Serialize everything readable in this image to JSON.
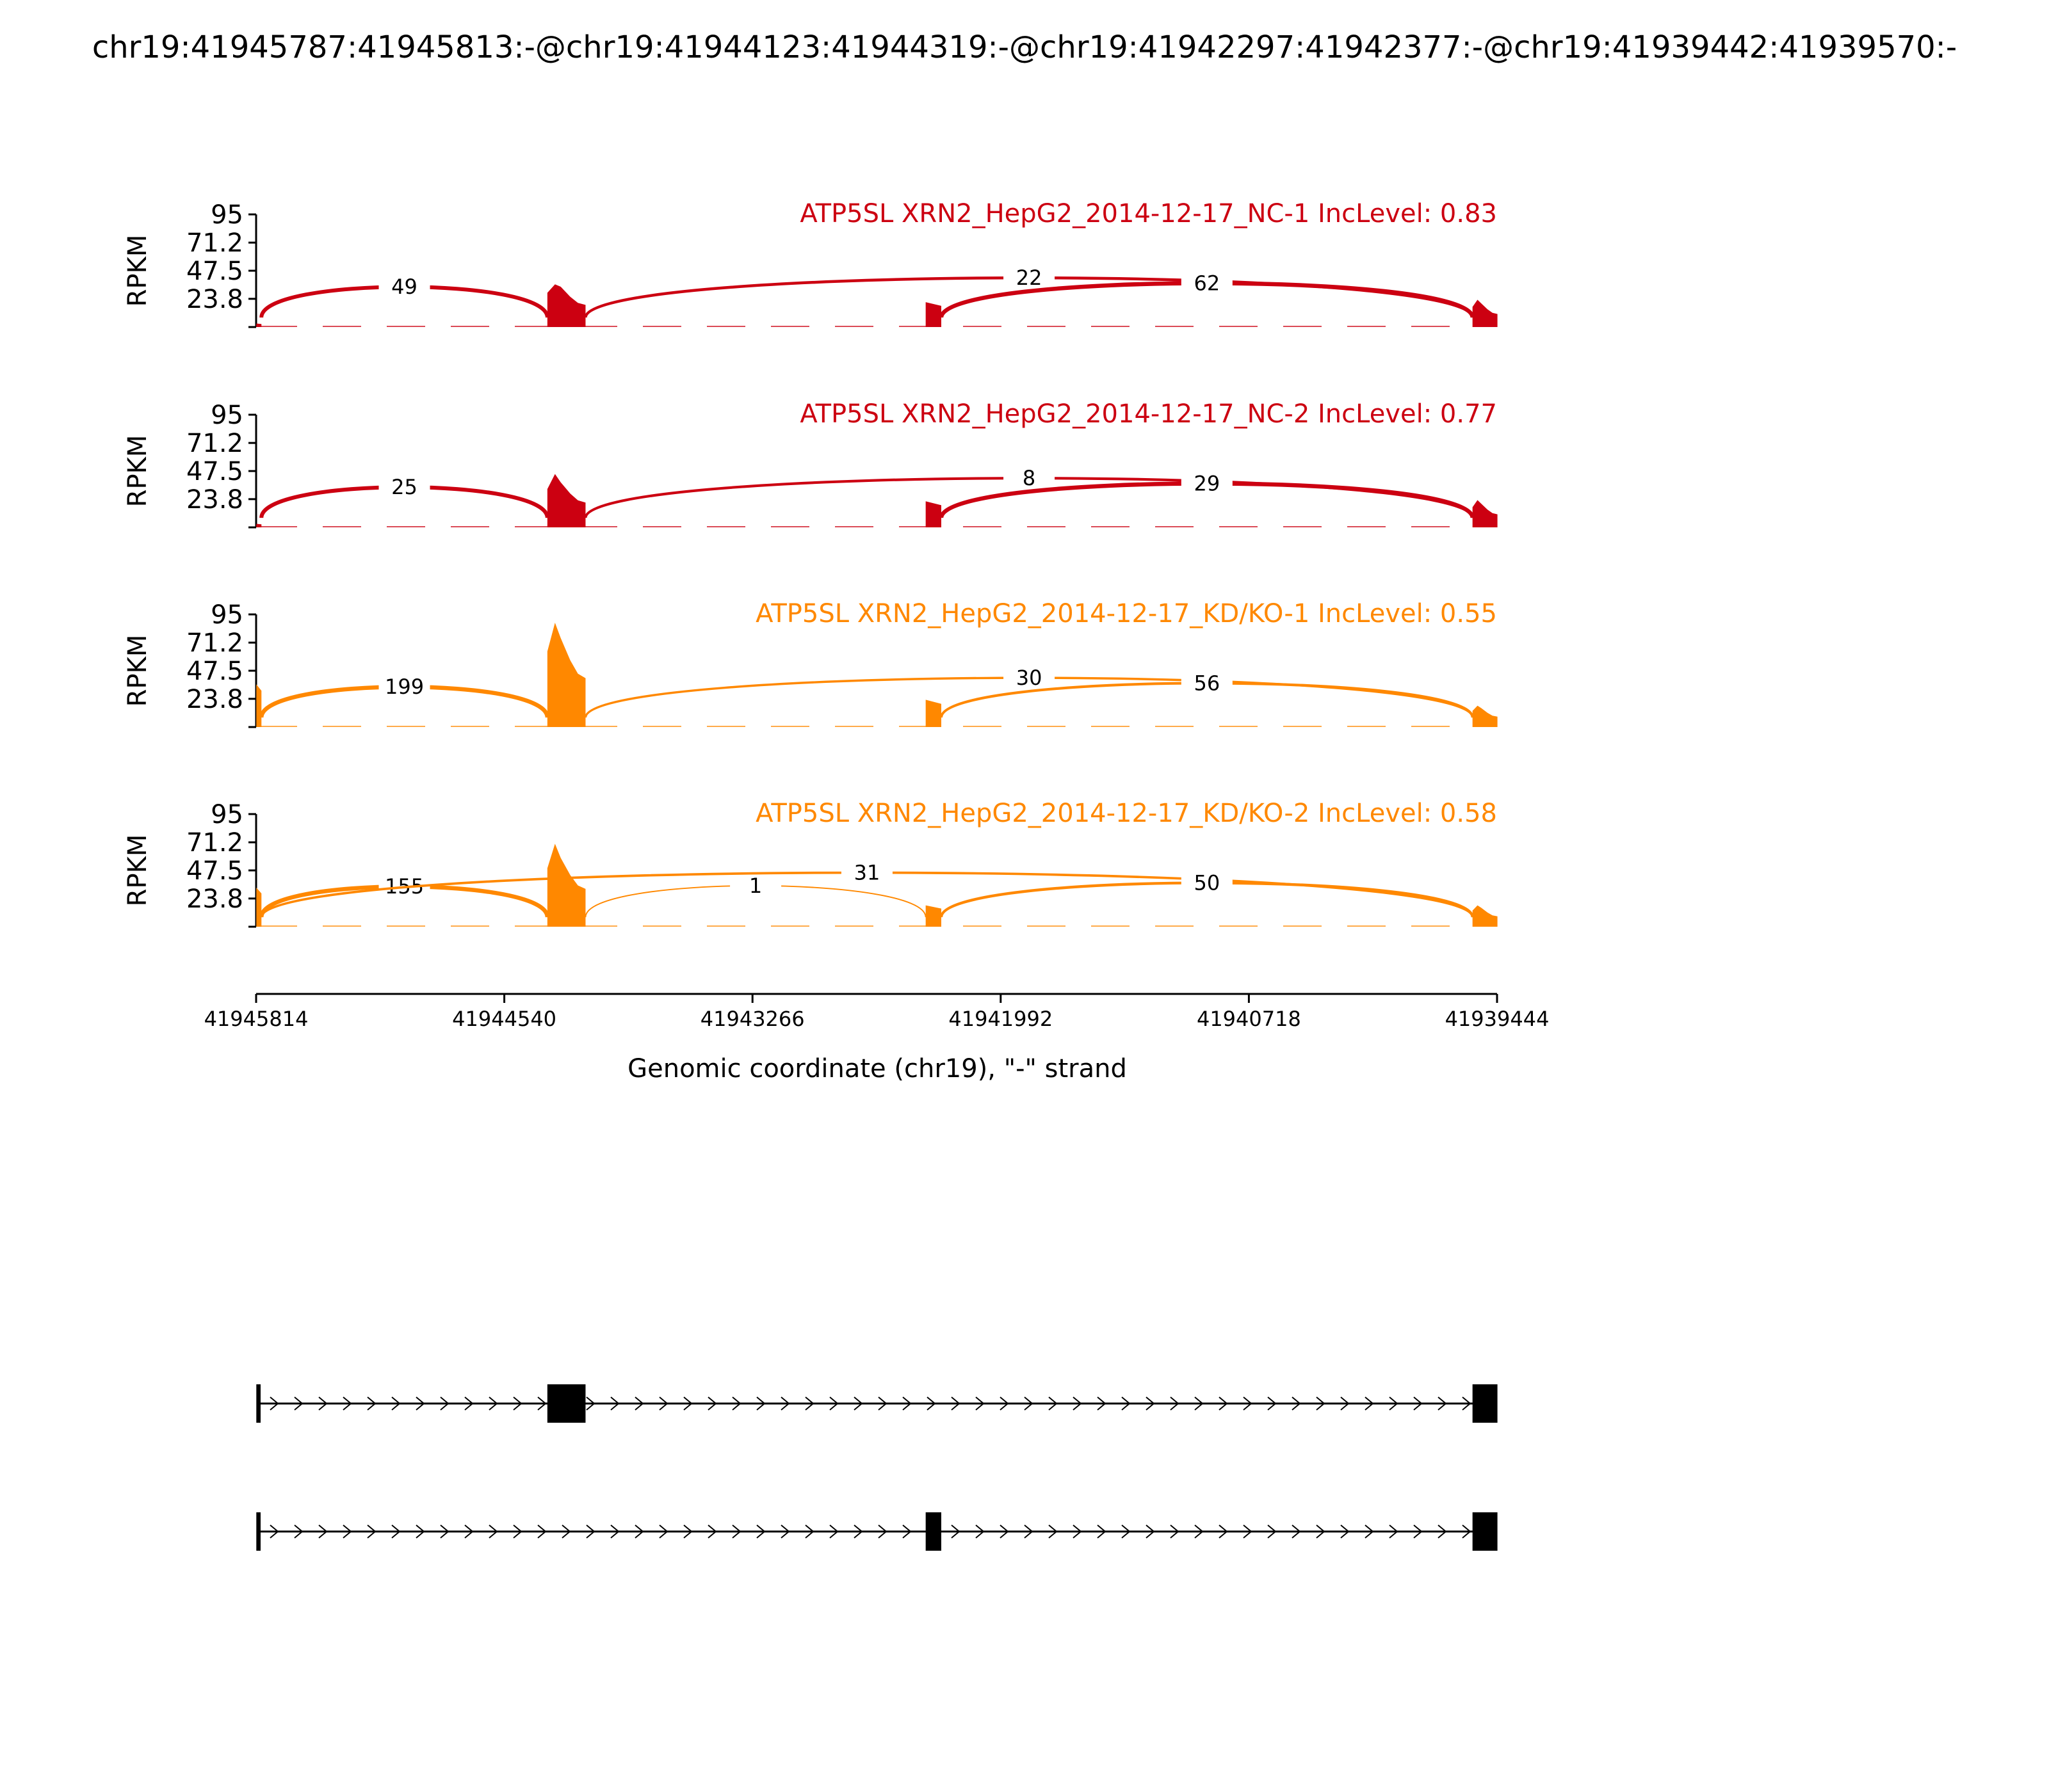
{
  "figure": {
    "title": "chr19:41945787:41945813:-@chr19:41944123:41944319:-@chr19:41942297:41942377:-@chr19:41939442:41939570:-",
    "x_axis_label": "Genomic coordinate (chr19), \"-\" strand"
  },
  "chart_data": {
    "type": "sashimi",
    "strand": "-",
    "chromosome": "chr19",
    "xlim": [
      41945814,
      41939444
    ],
    "x_ticks": [
      "41945814",
      "41944540",
      "41943266",
      "41941992",
      "41940718",
      "41939444"
    ],
    "ylabel": "RPKM",
    "ylim": [
      0,
      95
    ],
    "y_ticks": [
      "95",
      "71.2",
      "47.5",
      "23.8"
    ],
    "exons": [
      {
        "start": 41945813,
        "end": 41945787
      },
      {
        "start": 41944319,
        "end": 41944123
      },
      {
        "start": 41942377,
        "end": 41942297
      },
      {
        "start": 41939570,
        "end": 41939442
      }
    ],
    "colors": {
      "NC": "#cc0011",
      "KD/KO": "#ff8800",
      "gene_model": "#000000"
    },
    "samples": [
      {
        "label": "ATP5SL XRN2_HepG2_2014-12-17_NC-1 IncLevel: 0.83",
        "group": "NC",
        "coverage": [
          {
            "exon": 0,
            "level": 3
          },
          {
            "exon": 1,
            "level": 34,
            "peak": 36
          },
          {
            "exon": 2,
            "level": 21
          },
          {
            "exon": 3,
            "level": 20,
            "peak": 23
          }
        ],
        "junctions": [
          {
            "from": 41945787,
            "to": 41944319,
            "count": "49",
            "side": "above"
          },
          {
            "from": 41944123,
            "to": 41939570,
            "count": "22",
            "side": "above"
          },
          {
            "from": 41942297,
            "to": 41939570,
            "count": "62",
            "side": "above"
          }
        ]
      },
      {
        "label": "ATP5SL XRN2_HepG2_2014-12-17_NC-2 IncLevel: 0.77",
        "group": "NC",
        "coverage": [
          {
            "exon": 0,
            "level": 3
          },
          {
            "exon": 1,
            "level": 38,
            "peak": 45
          },
          {
            "exon": 2,
            "level": 22
          },
          {
            "exon": 3,
            "level": 20,
            "peak": 23
          }
        ],
        "junctions": [
          {
            "from": 41945787,
            "to": 41944319,
            "count": "25",
            "side": "above"
          },
          {
            "from": 41944123,
            "to": 41939570,
            "count": "8",
            "side": "above"
          },
          {
            "from": 41942297,
            "to": 41939570,
            "count": "29",
            "side": "above"
          }
        ]
      },
      {
        "label": "ATP5SL XRN2_HepG2_2014-12-17_KD/KO-1 IncLevel: 0.55",
        "group": "KD/KO",
        "coverage": [
          {
            "exon": 0,
            "level": 36
          },
          {
            "exon": 1,
            "level": 75,
            "peak": 88
          },
          {
            "exon": 2,
            "level": 23
          },
          {
            "exon": 3,
            "level": 16,
            "peak": 18
          }
        ],
        "junctions": [
          {
            "from": 41945787,
            "to": 41944319,
            "count": "199",
            "side": "above"
          },
          {
            "from": 41944123,
            "to": 41939570,
            "count": "30",
            "side": "above"
          },
          {
            "from": 41942297,
            "to": 41939570,
            "count": "56",
            "side": "above"
          }
        ]
      },
      {
        "label": "ATP5SL XRN2_HepG2_2014-12-17_KD/KO-2 IncLevel: 0.58",
        "group": "KD/KO",
        "coverage": [
          {
            "exon": 0,
            "level": 33
          },
          {
            "exon": 1,
            "level": 58,
            "peak": 70
          },
          {
            "exon": 2,
            "level": 18
          },
          {
            "exon": 3,
            "level": 16,
            "peak": 18
          }
        ],
        "junctions": [
          {
            "from": 41945787,
            "to": 41944319,
            "count": "155",
            "side": "above"
          },
          {
            "from": 41944123,
            "to": 41942377,
            "count": "1",
            "side": "above"
          },
          {
            "from": 41945787,
            "to": 41939570,
            "count": "31",
            "side": "above"
          },
          {
            "from": 41942297,
            "to": 41939570,
            "count": "50",
            "side": "above"
          }
        ]
      }
    ],
    "isoforms": [
      {
        "exons": [
          0,
          1,
          3
        ]
      },
      {
        "exons": [
          0,
          2,
          3
        ]
      }
    ]
  }
}
